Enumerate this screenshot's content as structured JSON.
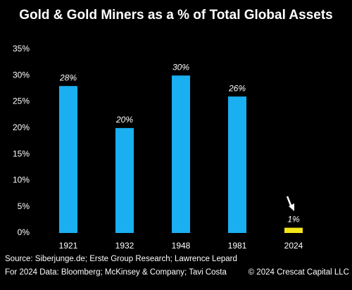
{
  "chart_data": {
    "type": "bar",
    "title": "Gold & Gold Miners as a % of Total Global Assets",
    "categories": [
      "1921",
      "1932",
      "1948",
      "1981",
      "2024"
    ],
    "values": [
      28,
      20,
      30,
      26,
      1
    ],
    "value_labels": [
      "28%",
      "20%",
      "30%",
      "26%",
      "1%"
    ],
    "colors": [
      "#1aaff0",
      "#1aaff0",
      "#1aaff0",
      "#1aaff0",
      "#f5e61a"
    ],
    "ylim": [
      0,
      35
    ],
    "yticks": [
      {
        "value": 0,
        "label": "0%"
      },
      {
        "value": 5,
        "label": "5%"
      },
      {
        "value": 10,
        "label": "10%"
      },
      {
        "value": 15,
        "label": "15%"
      },
      {
        "value": 20,
        "label": "20%"
      },
      {
        "value": 25,
        "label": "25%"
      },
      {
        "value": 30,
        "label": "30%"
      },
      {
        "value": 35,
        "label": "35%"
      }
    ],
    "grid": false,
    "source": "Source: Siberjunge.de; Erste Group Research; Lawrence Lepard",
    "note": "For 2024 Data: Bloomberg; McKinsey & Company; Tavi Costa",
    "credit": "© 2024 Crescat Capital LLC"
  }
}
